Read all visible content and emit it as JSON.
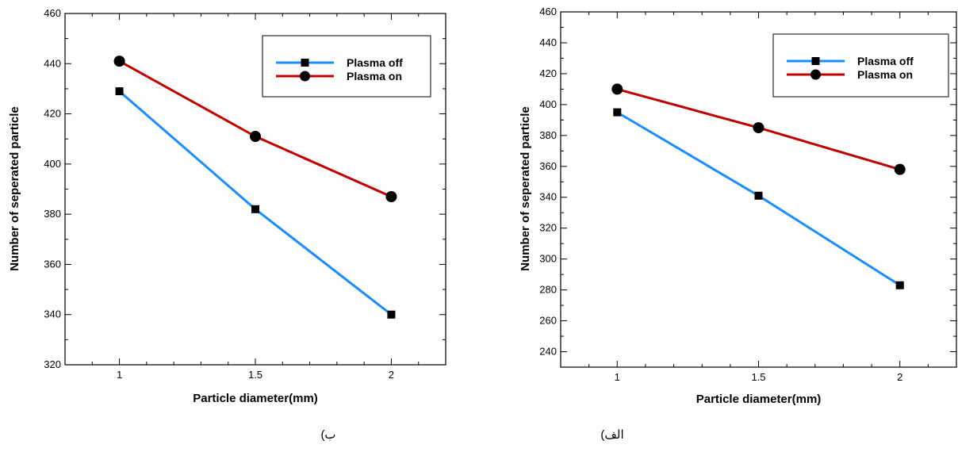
{
  "colors": {
    "plasma_off": "#1a8cff",
    "plasma_on": "#c00000"
  },
  "chart_data": [
    {
      "type": "line",
      "caption": "ب)",
      "xlabel": "Particle diameter(mm)",
      "ylabel": "Number of seperated particle",
      "xlim": [
        0.8,
        2.2
      ],
      "ylim": [
        320,
        460
      ],
      "x_ticks": [
        1,
        1.5,
        2
      ],
      "x_tick_labels": [
        "1",
        "1.5",
        "2"
      ],
      "y_ticks": [
        320,
        340,
        360,
        380,
        400,
        420,
        440,
        460
      ],
      "legend": "top-right",
      "x": [
        1,
        1.5,
        2
      ],
      "series": [
        {
          "name": "Plasma off",
          "values": [
            429,
            382,
            340
          ],
          "marker": "square",
          "color": "#1a8cff"
        },
        {
          "name": "Plasma on",
          "values": [
            441,
            411,
            387
          ],
          "marker": "circle",
          "color": "#c00000"
        }
      ]
    },
    {
      "type": "line",
      "caption": "الف)",
      "xlabel": "Particle diameter(mm)",
      "ylabel": "Number of seperated particle",
      "xlim": [
        0.8,
        2.2
      ],
      "ylim": [
        230,
        460
      ],
      "x_ticks": [
        1,
        1.5,
        2
      ],
      "x_tick_labels": [
        "1",
        "1.5",
        "2"
      ],
      "y_ticks": [
        240,
        260,
        280,
        300,
        320,
        340,
        360,
        380,
        400,
        420,
        440,
        460
      ],
      "legend": "top-right",
      "x": [
        1,
        1.5,
        2
      ],
      "series": [
        {
          "name": "Plasma off",
          "values": [
            395,
            341,
            283
          ],
          "marker": "square",
          "color": "#1a8cff"
        },
        {
          "name": "Plasma on",
          "values": [
            410,
            385,
            358
          ],
          "marker": "circle",
          "color": "#c00000"
        }
      ]
    }
  ]
}
